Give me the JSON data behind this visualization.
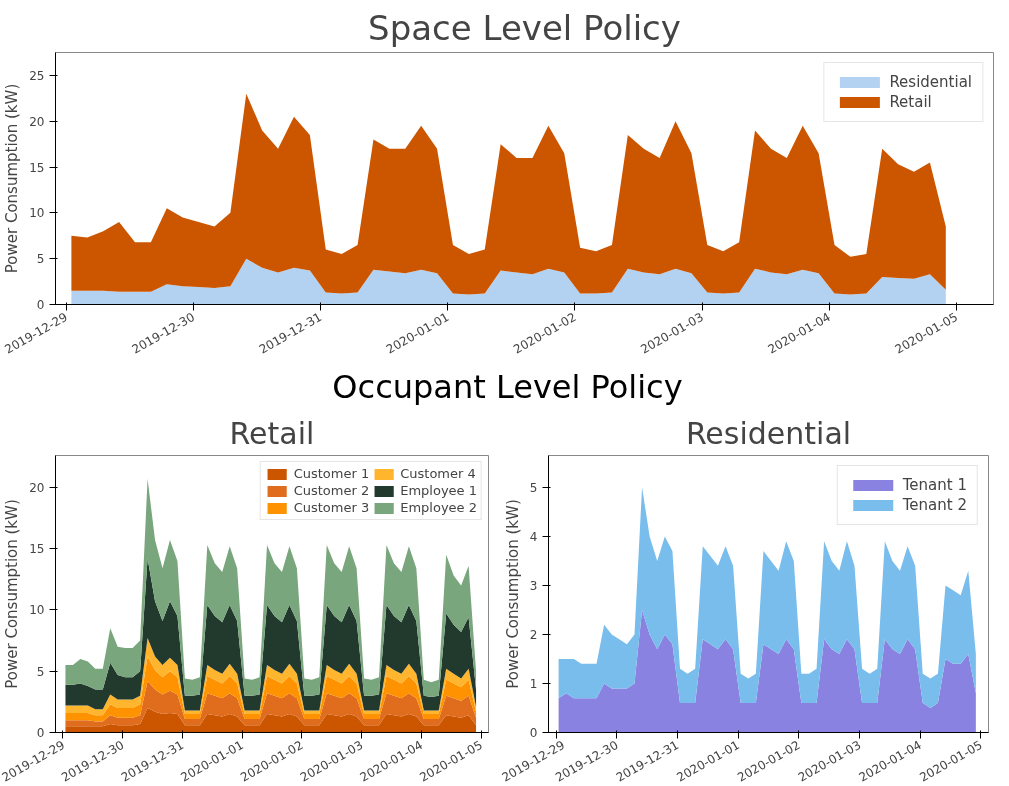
{
  "chart_data": [
    {
      "type": "area",
      "stacked": true,
      "title": "Space Level Policy",
      "ylabel": "Power Consumption (kW)",
      "legend": "top right",
      "grid": false,
      "xlim": [
        "2019-12-28T22:00",
        "2020-01-05T07:00"
      ],
      "ylim": [
        0,
        27.5
      ],
      "yticks": [
        0,
        5,
        10,
        15,
        20,
        25
      ],
      "xticks": [
        "2019-12-29",
        "2019-12-30",
        "2019-12-31",
        "2020-01-01",
        "2020-01-02",
        "2020-01-03",
        "2020-01-04",
        "2020-01-05"
      ],
      "x": [
        "2019-12-29T01:00",
        "2019-12-29T04:00",
        "2019-12-29T07:00",
        "2019-12-29T10:00",
        "2019-12-29T13:00",
        "2019-12-29T16:00",
        "2019-12-29T19:00",
        "2019-12-29T22:00",
        "2019-12-30T01:00",
        "2019-12-30T04:00",
        "2019-12-30T07:00",
        "2019-12-30T10:00",
        "2019-12-30T13:00",
        "2019-12-30T16:00",
        "2019-12-30T19:00",
        "2019-12-30T22:00",
        "2019-12-31T01:00",
        "2019-12-31T04:00",
        "2019-12-31T07:00",
        "2019-12-31T10:00",
        "2019-12-31T13:00",
        "2019-12-31T16:00",
        "2019-12-31T19:00",
        "2019-12-31T22:00",
        "2020-01-01T01:00",
        "2020-01-01T04:00",
        "2020-01-01T07:00",
        "2020-01-01T10:00",
        "2020-01-01T13:00",
        "2020-01-01T16:00",
        "2020-01-01T19:00",
        "2020-01-01T22:00",
        "2020-01-02T01:00",
        "2020-01-02T04:00",
        "2020-01-02T07:00",
        "2020-01-02T10:00",
        "2020-01-02T13:00",
        "2020-01-02T16:00",
        "2020-01-02T19:00",
        "2020-01-02T22:00",
        "2020-01-03T01:00",
        "2020-01-03T04:00",
        "2020-01-03T07:00",
        "2020-01-03T10:00",
        "2020-01-03T13:00",
        "2020-01-03T16:00",
        "2020-01-03T19:00",
        "2020-01-03T22:00",
        "2020-01-04T01:00",
        "2020-01-04T04:00",
        "2020-01-04T07:00",
        "2020-01-04T10:00",
        "2020-01-04T13:00",
        "2020-01-04T16:00",
        "2020-01-04T19:00",
        "2020-01-04T22:00"
      ],
      "series": [
        {
          "name": "Residential",
          "color": "#b3d1f0",
          "values": [
            1.5,
            1.5,
            1.5,
            1.4,
            1.4,
            1.4,
            2.2,
            2.0,
            1.9,
            1.8,
            2.0,
            5.0,
            4.0,
            3.5,
            4.0,
            3.7,
            1.3,
            1.2,
            1.3,
            3.8,
            3.6,
            3.4,
            3.8,
            3.4,
            1.2,
            1.1,
            1.2,
            3.7,
            3.5,
            3.3,
            3.9,
            3.5,
            1.2,
            1.2,
            1.3,
            3.9,
            3.5,
            3.3,
            3.9,
            3.4,
            1.3,
            1.2,
            1.3,
            3.9,
            3.5,
            3.3,
            3.8,
            3.4,
            1.2,
            1.1,
            1.2,
            3.0,
            2.9,
            2.8,
            3.3,
            1.6
          ]
        },
        {
          "name": "Retail",
          "color": "#cc5500",
          "values": [
            6.0,
            5.8,
            6.5,
            7.6,
            5.4,
            5.4,
            8.3,
            7.5,
            7.1,
            6.7,
            8.0,
            18.0,
            15.0,
            13.5,
            16.5,
            14.8,
            4.7,
            4.3,
            5.2,
            14.2,
            13.4,
            13.6,
            15.7,
            13.6,
            5.3,
            4.4,
            4.8,
            13.8,
            12.5,
            12.7,
            15.6,
            13.0,
            5.0,
            4.6,
            5.2,
            14.6,
            13.5,
            12.7,
            16.1,
            13.1,
            5.2,
            4.6,
            5.5,
            15.1,
            13.5,
            12.7,
            15.7,
            13.1,
            5.3,
            4.1,
            4.3,
            14.0,
            12.4,
            11.7,
            12.2,
            6.9
          ]
        }
      ]
    },
    {
      "type": "area",
      "stacked": true,
      "title": "Retail",
      "annotations": [
        "Occupant Level Policy"
      ],
      "ylabel": "Power Consumption (kW)",
      "legend": "top right",
      "grid": false,
      "xlim": [
        "2019-12-28T21:00",
        "2020-01-05T03:00"
      ],
      "ylim": [
        0,
        22.6
      ],
      "yticks": [
        0,
        5,
        10,
        15,
        20
      ],
      "xticks": [
        "2019-12-29",
        "2019-12-30",
        "2019-12-31",
        "2020-01-01",
        "2020-01-02",
        "2020-01-03",
        "2020-01-04",
        "2020-01-05"
      ],
      "x": [
        "2019-12-29T01:00",
        "2019-12-29T04:00",
        "2019-12-29T07:00",
        "2019-12-29T10:00",
        "2019-12-29T13:00",
        "2019-12-29T16:00",
        "2019-12-29T19:00",
        "2019-12-29T22:00",
        "2019-12-30T01:00",
        "2019-12-30T04:00",
        "2019-12-30T07:00",
        "2019-12-30T10:00",
        "2019-12-30T13:00",
        "2019-12-30T16:00",
        "2019-12-30T19:00",
        "2019-12-30T22:00",
        "2019-12-31T01:00",
        "2019-12-31T04:00",
        "2019-12-31T07:00",
        "2019-12-31T10:00",
        "2019-12-31T13:00",
        "2019-12-31T16:00",
        "2019-12-31T19:00",
        "2019-12-31T22:00",
        "2020-01-01T01:00",
        "2020-01-01T04:00",
        "2020-01-01T07:00",
        "2020-01-01T10:00",
        "2020-01-01T13:00",
        "2020-01-01T16:00",
        "2020-01-01T19:00",
        "2020-01-01T22:00",
        "2020-01-02T01:00",
        "2020-01-02T04:00",
        "2020-01-02T07:00",
        "2020-01-02T10:00",
        "2020-01-02T13:00",
        "2020-01-02T16:00",
        "2020-01-02T19:00",
        "2020-01-02T22:00",
        "2020-01-03T01:00",
        "2020-01-03T04:00",
        "2020-01-03T07:00",
        "2020-01-03T10:00",
        "2020-01-03T13:00",
        "2020-01-03T16:00",
        "2020-01-03T19:00",
        "2020-01-03T22:00",
        "2020-01-04T01:00",
        "2020-01-04T04:00",
        "2020-01-04T07:00",
        "2020-01-04T10:00",
        "2020-01-04T13:00",
        "2020-01-04T16:00",
        "2020-01-04T19:00",
        "2020-01-04T22:00"
      ],
      "series": [
        {
          "name": "Customer 1",
          "color": "#cc5500",
          "values": [
            0.5,
            0.5,
            0.5,
            0.5,
            0.5,
            0.5,
            0.7,
            0.6,
            0.6,
            0.6,
            0.7,
            2.0,
            1.7,
            1.5,
            1.6,
            1.5,
            0.6,
            0.6,
            0.6,
            1.5,
            1.4,
            1.3,
            1.5,
            1.3,
            0.6,
            0.6,
            0.6,
            1.5,
            1.4,
            1.3,
            1.5,
            1.3,
            0.6,
            0.6,
            0.6,
            1.5,
            1.4,
            1.3,
            1.5,
            1.3,
            0.6,
            0.6,
            0.6,
            1.5,
            1.4,
            1.3,
            1.5,
            1.3,
            0.6,
            0.6,
            0.6,
            1.4,
            1.3,
            1.2,
            1.4,
            0.6
          ]
        },
        {
          "name": "Customer 2",
          "color": "#e06c1e",
          "values": [
            0.5,
            0.5,
            0.5,
            0.5,
            0.4,
            0.4,
            0.7,
            0.6,
            0.6,
            0.6,
            0.7,
            2.2,
            1.8,
            1.6,
            1.8,
            1.6,
            0.5,
            0.5,
            0.5,
            1.7,
            1.6,
            1.5,
            1.7,
            1.5,
            0.5,
            0.5,
            0.5,
            1.7,
            1.6,
            1.5,
            1.7,
            1.5,
            0.5,
            0.5,
            0.5,
            1.7,
            1.6,
            1.5,
            1.7,
            1.5,
            0.5,
            0.5,
            0.5,
            1.7,
            1.6,
            1.5,
            1.7,
            1.5,
            0.5,
            0.5,
            0.5,
            1.6,
            1.5,
            1.4,
            1.6,
            0.6
          ]
        },
        {
          "name": "Customer 3",
          "color": "#ff9200",
          "values": [
            0.6,
            0.6,
            0.6,
            0.6,
            0.5,
            0.5,
            0.9,
            0.8,
            0.8,
            0.8,
            0.9,
            2.0,
            1.6,
            1.4,
            1.6,
            1.4,
            0.4,
            0.4,
            0.4,
            1.4,
            1.3,
            1.2,
            1.4,
            1.2,
            0.4,
            0.4,
            0.4,
            1.4,
            1.3,
            1.2,
            1.4,
            1.2,
            0.4,
            0.4,
            0.4,
            1.4,
            1.3,
            1.2,
            1.4,
            1.2,
            0.4,
            0.4,
            0.4,
            1.4,
            1.3,
            1.2,
            1.4,
            1.2,
            0.4,
            0.4,
            0.4,
            1.3,
            1.2,
            1.1,
            1.3,
            0.5
          ]
        },
        {
          "name": "Customer 4",
          "color": "#ffb52e",
          "values": [
            0.6,
            0.6,
            0.6,
            0.6,
            0.5,
            0.5,
            0.8,
            0.7,
            0.7,
            0.7,
            0.7,
            1.5,
            1.1,
            1.0,
            1.1,
            1.0,
            0.3,
            0.3,
            0.3,
            0.9,
            0.8,
            0.8,
            1.0,
            0.8,
            0.3,
            0.3,
            0.3,
            0.9,
            0.8,
            0.8,
            1.0,
            0.8,
            0.3,
            0.3,
            0.3,
            0.9,
            0.8,
            0.8,
            1.0,
            0.8,
            0.3,
            0.3,
            0.3,
            0.9,
            0.8,
            0.8,
            1.0,
            0.8,
            0.3,
            0.3,
            0.3,
            0.9,
            0.8,
            0.7,
            0.9,
            0.4
          ]
        },
        {
          "name": "Employee 1",
          "color": "#223a2e",
          "values": [
            1.7,
            1.7,
            1.8,
            1.6,
            1.6,
            1.6,
            2.6,
            2.0,
            1.8,
            1.8,
            2.0,
            6.5,
            4.5,
            3.6,
            4.6,
            4.0,
            1.2,
            1.2,
            1.3,
            4.9,
            4.4,
            4.2,
            4.8,
            4.3,
            1.2,
            1.2,
            1.3,
            4.9,
            4.4,
            4.2,
            4.8,
            4.3,
            1.2,
            1.2,
            1.3,
            4.9,
            4.4,
            4.2,
            4.8,
            4.3,
            1.2,
            1.2,
            1.3,
            4.9,
            4.4,
            4.2,
            4.8,
            4.3,
            1.2,
            1.1,
            1.2,
            4.5,
            4.0,
            3.8,
            4.2,
            1.4
          ]
        },
        {
          "name": "Employee 2",
          "color": "#7aa67d",
          "values": [
            1.6,
            1.6,
            2.0,
            2.0,
            1.7,
            1.7,
            2.8,
            2.3,
            2.4,
            2.4,
            2.5,
            6.5,
            5.0,
            4.3,
            5.0,
            4.5,
            1.4,
            1.3,
            1.4,
            4.9,
            4.3,
            4.1,
            4.8,
            4.3,
            1.4,
            1.3,
            1.4,
            4.9,
            4.3,
            4.1,
            4.8,
            4.3,
            1.4,
            1.3,
            1.4,
            4.9,
            4.3,
            4.1,
            4.8,
            4.3,
            1.4,
            1.3,
            1.4,
            4.9,
            4.3,
            4.1,
            4.8,
            4.3,
            1.3,
            1.2,
            1.3,
            4.8,
            4.0,
            3.8,
            4.2,
            1.5
          ]
        }
      ]
    },
    {
      "type": "area",
      "stacked": true,
      "title": "Residential",
      "ylabel": "Power Consumption (kW)",
      "legend": "top right",
      "grid": false,
      "xlim": [
        "2019-12-28T21:00",
        "2020-01-05T03:00"
      ],
      "ylim": [
        0,
        5.65
      ],
      "yticks": [
        0,
        1,
        2,
        3,
        4,
        5
      ],
      "xticks": [
        "2019-12-29",
        "2019-12-30",
        "2019-12-31",
        "2020-01-01",
        "2020-01-02",
        "2020-01-03",
        "2020-01-04",
        "2020-01-05"
      ],
      "x": [
        "2019-12-29T01:00",
        "2019-12-29T04:00",
        "2019-12-29T07:00",
        "2019-12-29T10:00",
        "2019-12-29T13:00",
        "2019-12-29T16:00",
        "2019-12-29T19:00",
        "2019-12-29T22:00",
        "2019-12-30T01:00",
        "2019-12-30T04:00",
        "2019-12-30T07:00",
        "2019-12-30T10:00",
        "2019-12-30T13:00",
        "2019-12-30T16:00",
        "2019-12-30T19:00",
        "2019-12-30T22:00",
        "2019-12-31T01:00",
        "2019-12-31T04:00",
        "2019-12-31T07:00",
        "2019-12-31T10:00",
        "2019-12-31T13:00",
        "2019-12-31T16:00",
        "2019-12-31T19:00",
        "2019-12-31T22:00",
        "2020-01-01T01:00",
        "2020-01-01T04:00",
        "2020-01-01T07:00",
        "2020-01-01T10:00",
        "2020-01-01T13:00",
        "2020-01-01T16:00",
        "2020-01-01T19:00",
        "2020-01-01T22:00",
        "2020-01-02T01:00",
        "2020-01-02T04:00",
        "2020-01-02T07:00",
        "2020-01-02T10:00",
        "2020-01-02T13:00",
        "2020-01-02T16:00",
        "2020-01-02T19:00",
        "2020-01-02T22:00",
        "2020-01-03T01:00",
        "2020-01-03T04:00",
        "2020-01-03T07:00",
        "2020-01-03T10:00",
        "2020-01-03T13:00",
        "2020-01-03T16:00",
        "2020-01-03T19:00",
        "2020-01-03T22:00",
        "2020-01-04T01:00",
        "2020-01-04T04:00",
        "2020-01-04T07:00",
        "2020-01-04T10:00",
        "2020-01-04T13:00",
        "2020-01-04T16:00",
        "2020-01-04T19:00",
        "2020-01-04T22:00"
      ],
      "series": [
        {
          "name": "Tenant 1",
          "color": "#8a82e0",
          "values": [
            0.7,
            0.8,
            0.7,
            0.7,
            0.7,
            0.7,
            1.0,
            0.9,
            0.9,
            0.9,
            1.0,
            2.5,
            2.0,
            1.7,
            2.0,
            1.8,
            0.6,
            0.6,
            0.6,
            1.9,
            1.8,
            1.7,
            1.9,
            1.7,
            0.6,
            0.6,
            0.6,
            1.8,
            1.7,
            1.6,
            1.9,
            1.7,
            0.6,
            0.6,
            0.6,
            1.9,
            1.7,
            1.6,
            1.9,
            1.7,
            0.6,
            0.6,
            0.6,
            1.9,
            1.7,
            1.6,
            1.9,
            1.7,
            0.6,
            0.5,
            0.6,
            1.5,
            1.4,
            1.4,
            1.6,
            0.8
          ]
        },
        {
          "name": "Tenant 2",
          "color": "#78bdec",
          "values": [
            0.8,
            0.7,
            0.8,
            0.7,
            0.7,
            0.7,
            1.2,
            1.1,
            1.0,
            0.9,
            1.0,
            2.5,
            2.0,
            1.8,
            2.0,
            1.9,
            0.7,
            0.6,
            0.7,
            1.9,
            1.8,
            1.7,
            1.9,
            1.7,
            0.6,
            0.5,
            0.6,
            1.9,
            1.8,
            1.7,
            2.0,
            1.8,
            0.6,
            0.6,
            0.7,
            2.0,
            1.8,
            1.7,
            2.0,
            1.7,
            0.7,
            0.6,
            0.7,
            2.0,
            1.8,
            1.7,
            1.9,
            1.7,
            0.6,
            0.6,
            0.6,
            1.5,
            1.5,
            1.4,
            1.7,
            0.8
          ]
        }
      ]
    }
  ]
}
